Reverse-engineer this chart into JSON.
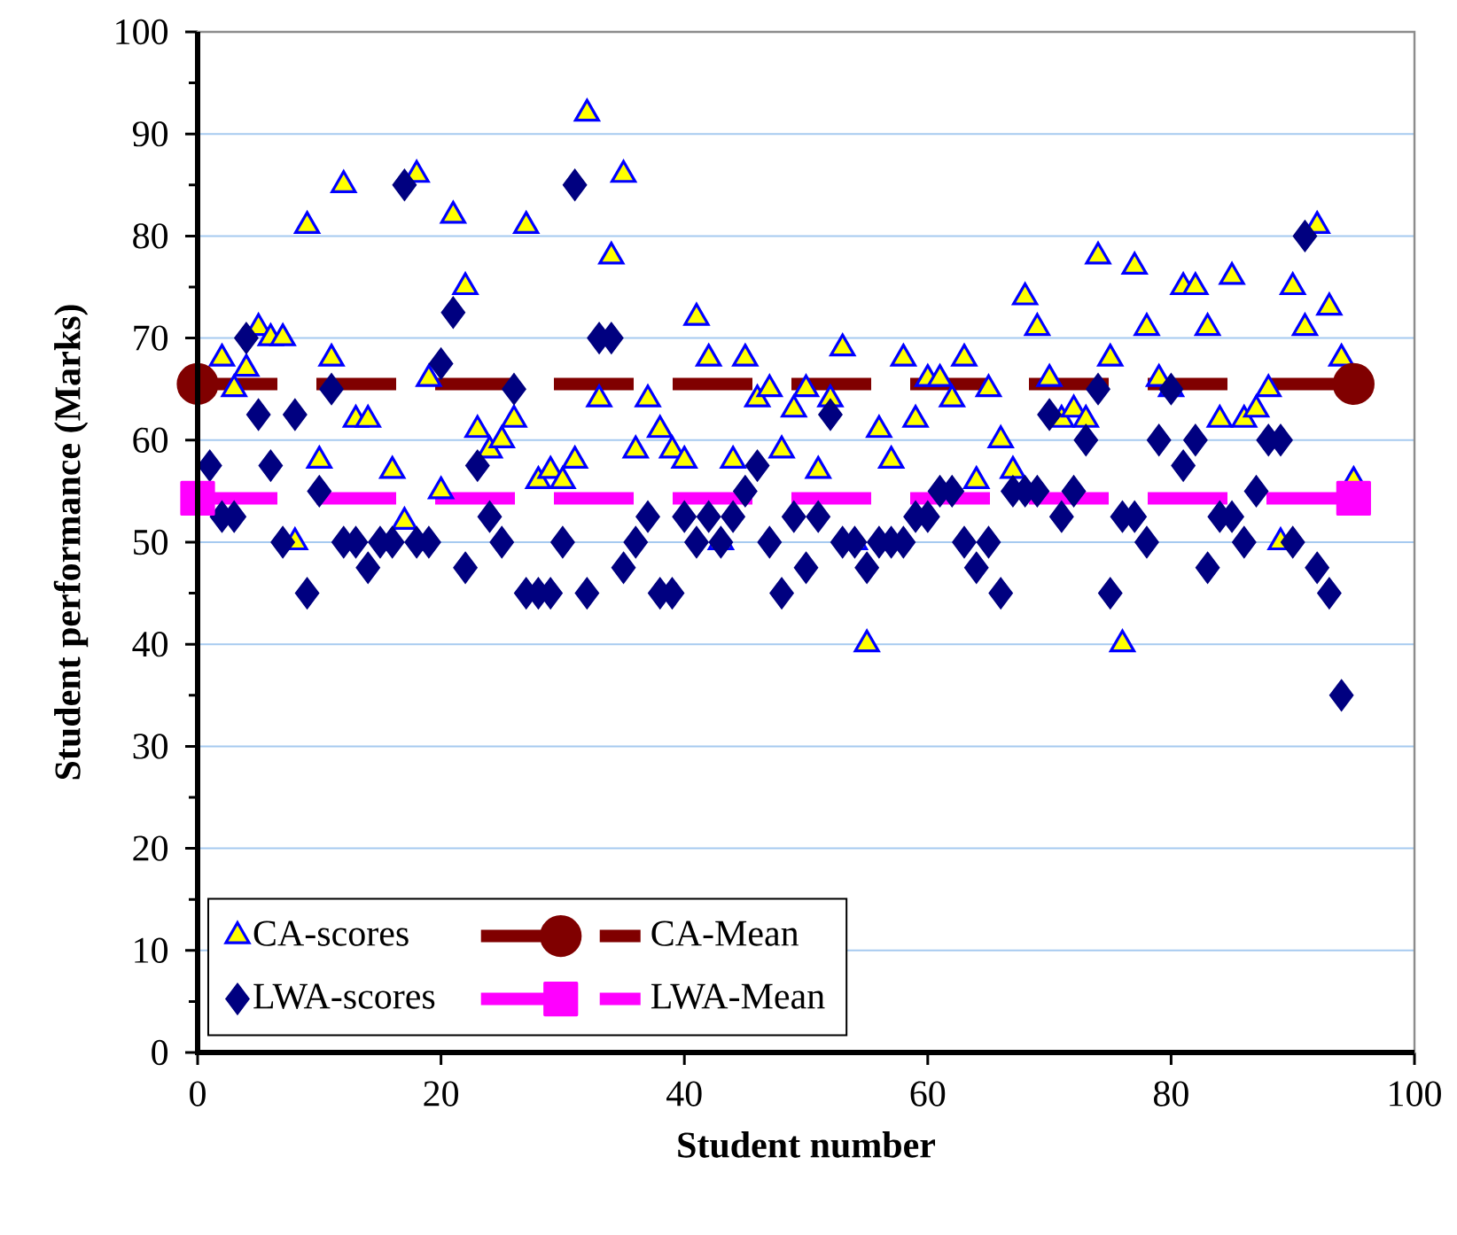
{
  "chart_data": {
    "type": "scatter",
    "xlabel": "Student number",
    "ylabel": "Student performance (Marks)",
    "xlim": [
      0,
      100
    ],
    "ylim": [
      0,
      100
    ],
    "xticks": [
      0,
      20,
      40,
      60,
      80,
      100
    ],
    "yticks": [
      0,
      10,
      20,
      30,
      40,
      50,
      60,
      70,
      80,
      90,
      100
    ],
    "grid": "y",
    "legend": "bottom left",
    "series": [
      {
        "name": "CA-scores",
        "marker": "triangle",
        "color": "#ffff00",
        "x": [
          2,
          3,
          4,
          5,
          6,
          7,
          8,
          9,
          10,
          11,
          12,
          13,
          14,
          16,
          17,
          18,
          19,
          20,
          21,
          22,
          23,
          24,
          25,
          26,
          27,
          28,
          29,
          30,
          31,
          32,
          33,
          34,
          35,
          36,
          37,
          38,
          39,
          40,
          41,
          42,
          43,
          44,
          45,
          46,
          47,
          48,
          49,
          50,
          51,
          52,
          53,
          54,
          55,
          56,
          57,
          58,
          59,
          60,
          61,
          62,
          63,
          64,
          65,
          66,
          67,
          68,
          69,
          70,
          71,
          72,
          73,
          74,
          75,
          76,
          77,
          78,
          79,
          80,
          81,
          82,
          83,
          84,
          85,
          86,
          87,
          88,
          89,
          90,
          91,
          92,
          93,
          94,
          95
        ],
        "values": [
          68,
          65,
          67,
          71,
          70,
          70,
          50,
          81,
          58,
          68,
          85,
          62,
          62,
          57,
          52,
          86,
          66,
          55,
          82,
          75,
          61,
          59,
          60,
          62,
          81,
          56,
          57,
          56,
          58,
          92,
          64,
          78,
          86,
          59,
          64,
          61,
          59,
          58,
          72,
          68,
          50,
          58,
          68,
          64,
          65,
          59,
          63,
          65,
          57,
          64,
          69,
          50,
          40,
          61,
          58,
          68,
          62,
          66,
          66,
          64,
          68,
          56,
          65,
          60,
          57,
          74,
          71,
          66,
          62,
          63,
          62,
          78,
          68,
          40,
          77,
          71,
          66,
          65,
          75,
          75,
          71,
          62,
          76,
          62,
          63,
          65,
          50,
          75,
          71,
          81,
          73,
          68,
          56
        ]
      },
      {
        "name": "CA-Mean",
        "type": "line",
        "marker": "circle",
        "line_style": "dashed",
        "color": "#800000",
        "x": [
          0,
          95
        ],
        "values": [
          65.5,
          65.5
        ]
      },
      {
        "name": "LWA-scores",
        "marker": "diamond",
        "color": "#000080",
        "x": [
          1,
          2,
          3,
          4,
          5,
          6,
          7,
          8,
          9,
          10,
          11,
          12,
          13,
          14,
          15,
          16,
          17,
          18,
          19,
          20,
          21,
          22,
          23,
          24,
          25,
          26,
          27,
          28,
          29,
          30,
          31,
          32,
          33,
          34,
          35,
          36,
          37,
          38,
          39,
          40,
          41,
          42,
          43,
          44,
          45,
          46,
          47,
          48,
          49,
          50,
          51,
          52,
          53,
          54,
          55,
          56,
          57,
          58,
          59,
          60,
          61,
          62,
          63,
          64,
          65,
          66,
          67,
          68,
          69,
          70,
          71,
          72,
          73,
          74,
          75,
          76,
          77,
          78,
          79,
          80,
          81,
          82,
          83,
          84,
          85,
          86,
          87,
          88,
          89,
          90,
          91,
          92,
          93,
          94
        ],
        "values": [
          57.5,
          52.5,
          52.5,
          70,
          62.5,
          57.5,
          50,
          62.5,
          45,
          55,
          65,
          50,
          50,
          47.5,
          50,
          50,
          85,
          50,
          50,
          67.5,
          72.5,
          47.5,
          57.5,
          52.5,
          50,
          65,
          45,
          45,
          45,
          50,
          85,
          45,
          70,
          70,
          47.5,
          50,
          52.5,
          45,
          45,
          52.5,
          50,
          52.5,
          50,
          52.5,
          55,
          57.5,
          50,
          45,
          52.5,
          47.5,
          52.5,
          62.5,
          50,
          50,
          47.5,
          50,
          50,
          50,
          52.5,
          52.5,
          55,
          55,
          50,
          47.5,
          50,
          45,
          55,
          55,
          55,
          62.5,
          52.5,
          55,
          60,
          65,
          45,
          52.5,
          52.5,
          50,
          60,
          65,
          57.5,
          60,
          47.5,
          52.5,
          52.5,
          50,
          55,
          60,
          60,
          50,
          80,
          47.5,
          45,
          35
        ]
      },
      {
        "name": "LWA-Mean",
        "type": "line",
        "marker": "square",
        "line_style": "dashed",
        "color": "#ff00ff",
        "x": [
          0,
          95
        ],
        "values": [
          54.3,
          54.3
        ]
      }
    ]
  }
}
